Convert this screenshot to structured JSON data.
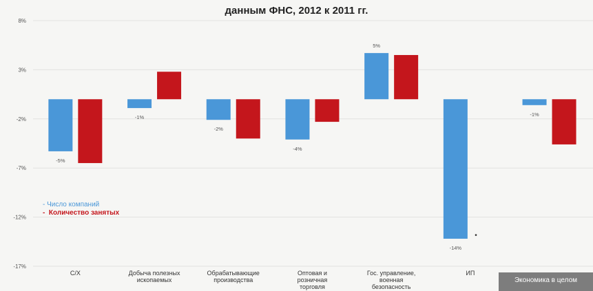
{
  "chart_data": {
    "type": "bar",
    "title_line1": "",
    "title_line2": "данным ФНС, 2012 к 2011 гг.",
    "categories": [
      [
        "С/Х"
      ],
      [
        "Добыча полезных",
        "ископаемых"
      ],
      [
        "Обрабатывающие",
        "производства"
      ],
      [
        "Оптовая и",
        "розничная",
        "торговля"
      ],
      [
        "Гос. управление,",
        "военная",
        "безопасность"
      ],
      [
        "ИП"
      ],
      [
        "Экономика в целом"
      ]
    ],
    "highlighted_category": 6,
    "series": [
      {
        "name": "Число компаний",
        "color": "#4a97d8",
        "values": [
          -5.3,
          -0.9,
          -2.1,
          -4.1,
          4.7,
          -14.2,
          -0.6
        ],
        "labels": [
          "-5%",
          "-1%",
          "-2%",
          "-4%",
          "5%",
          "-14%",
          "-1%"
        ]
      },
      {
        "name": "Количество занятых",
        "color": "#c4161c",
        "values": [
          -6.5,
          2.8,
          -4.0,
          -2.3,
          4.5,
          null,
          -4.6
        ],
        "labels": []
      }
    ],
    "yticks": [
      "8%",
      "3%",
      "-2%",
      "-7%",
      "-12%",
      "-17%"
    ],
    "ytick_values": [
      8,
      3,
      -2,
      -7,
      -12,
      -17
    ],
    "ylim": [
      -17,
      8
    ],
    "grid": true,
    "legend_position": "bottom-left",
    "annotation": "•"
  }
}
